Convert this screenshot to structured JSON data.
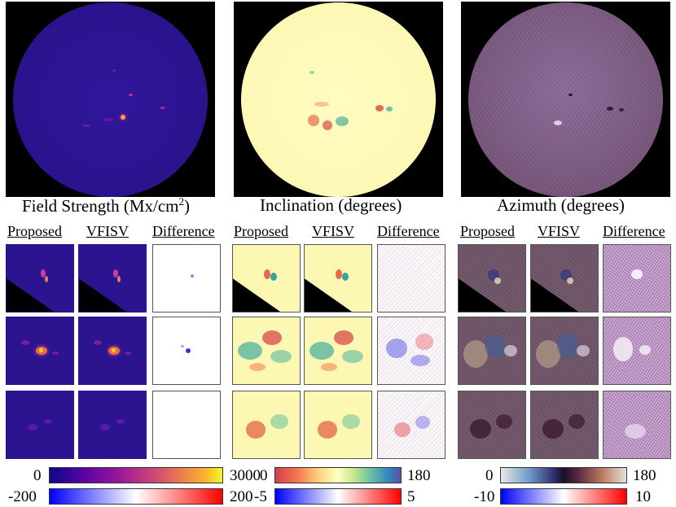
{
  "panels": [
    {
      "title_pre": "Field Strength (Mx/cm",
      "title_sup": "2",
      "title_post": ")",
      "labels": [
        "Proposed",
        "VFISV",
        "Difference"
      ],
      "colorbars": [
        {
          "min": "0",
          "max": "3000",
          "colormap": "plasma",
          "range": [
            0,
            3000
          ]
        },
        {
          "min": "-200",
          "max": "200",
          "colormap": "bwr",
          "range": [
            -200,
            200
          ]
        }
      ]
    },
    {
      "title": "Inclination (degrees)",
      "labels": [
        "Proposed",
        "VFISV",
        "Difference"
      ],
      "colorbars": [
        {
          "min": "0",
          "max": "180",
          "colormap": "spectral",
          "range": [
            0,
            180
          ]
        },
        {
          "min": "-5",
          "max": "5",
          "colormap": "bwr",
          "range": [
            -5,
            5
          ]
        }
      ]
    },
    {
      "title": "Azimuth (degrees)",
      "labels": [
        "Proposed",
        "VFISV",
        "Difference"
      ],
      "colorbars": [
        {
          "min": "0",
          "max": "180",
          "colormap": "twilight",
          "range": [
            0,
            180
          ]
        },
        {
          "min": "-10",
          "max": "10",
          "colormap": "bwr",
          "range": [
            -10,
            10
          ]
        }
      ]
    }
  ],
  "colors": {
    "field_background": "#2c1390",
    "inclination_background": "#fcf8b4",
    "azimuth_background": "#6f5468",
    "difference_positive": "#ff0000",
    "difference_negative": "#0000ff"
  }
}
